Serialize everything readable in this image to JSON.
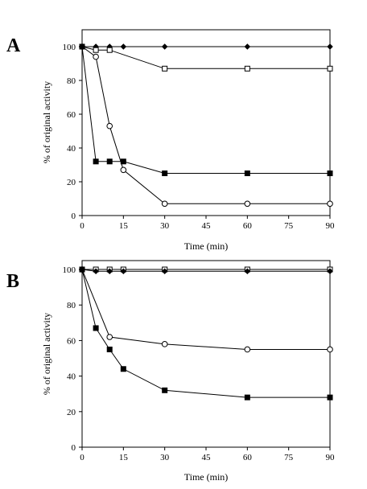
{
  "chart_data": [
    {
      "type": "line",
      "panel_label": "A",
      "xlabel": "Time (min)",
      "ylabel": "% of original activity",
      "xlim": [
        0,
        90
      ],
      "ylim": [
        0,
        110
      ],
      "xticks": [
        0,
        15,
        30,
        45,
        60,
        75,
        90
      ],
      "yticks": [
        0,
        20,
        40,
        60,
        80,
        100
      ],
      "series": [
        {
          "marker": "filled-diamond",
          "x": [
            0,
            5,
            10,
            15,
            30,
            60,
            90
          ],
          "y": [
            100,
            100,
            100,
            100,
            100,
            100,
            100
          ]
        },
        {
          "marker": "open-square",
          "x": [
            0,
            5,
            10,
            30,
            60,
            90
          ],
          "y": [
            100,
            98,
            98,
            87,
            87,
            87
          ]
        },
        {
          "marker": "open-circle",
          "x": [
            0,
            5,
            10,
            15,
            30,
            60,
            90
          ],
          "y": [
            100,
            94,
            53,
            27,
            7,
            7,
            7
          ]
        },
        {
          "marker": "filled-square",
          "x": [
            0,
            5,
            10,
            15,
            30,
            60,
            90
          ],
          "y": [
            100,
            32,
            32,
            32,
            25,
            25,
            25
          ]
        }
      ]
    },
    {
      "type": "line",
      "panel_label": "B",
      "xlabel": "Time (min)",
      "ylabel": "% of original activity",
      "xlim": [
        0,
        90
      ],
      "ylim": [
        0,
        105
      ],
      "xticks": [
        0,
        15,
        30,
        45,
        60,
        75,
        90
      ],
      "yticks": [
        0,
        20,
        40,
        60,
        80,
        100
      ],
      "series": [
        {
          "marker": "open-square",
          "x": [
            0,
            5,
            10,
            15,
            30,
            60,
            90
          ],
          "y": [
            100,
            100,
            100,
            100,
            100,
            100,
            100
          ]
        },
        {
          "marker": "filled-diamond",
          "x": [
            0,
            5,
            10,
            15,
            30,
            60,
            90
          ],
          "y": [
            100,
            99,
            99,
            99,
            99,
            99,
            99
          ]
        },
        {
          "marker": "open-circle",
          "x": [
            0,
            10,
            30,
            60,
            90
          ],
          "y": [
            100,
            62,
            58,
            55,
            55
          ]
        },
        {
          "marker": "filled-square",
          "x": [
            0,
            5,
            10,
            15,
            30,
            60,
            90
          ],
          "y": [
            100,
            67,
            55,
            44,
            32,
            28,
            28
          ]
        }
      ]
    }
  ]
}
